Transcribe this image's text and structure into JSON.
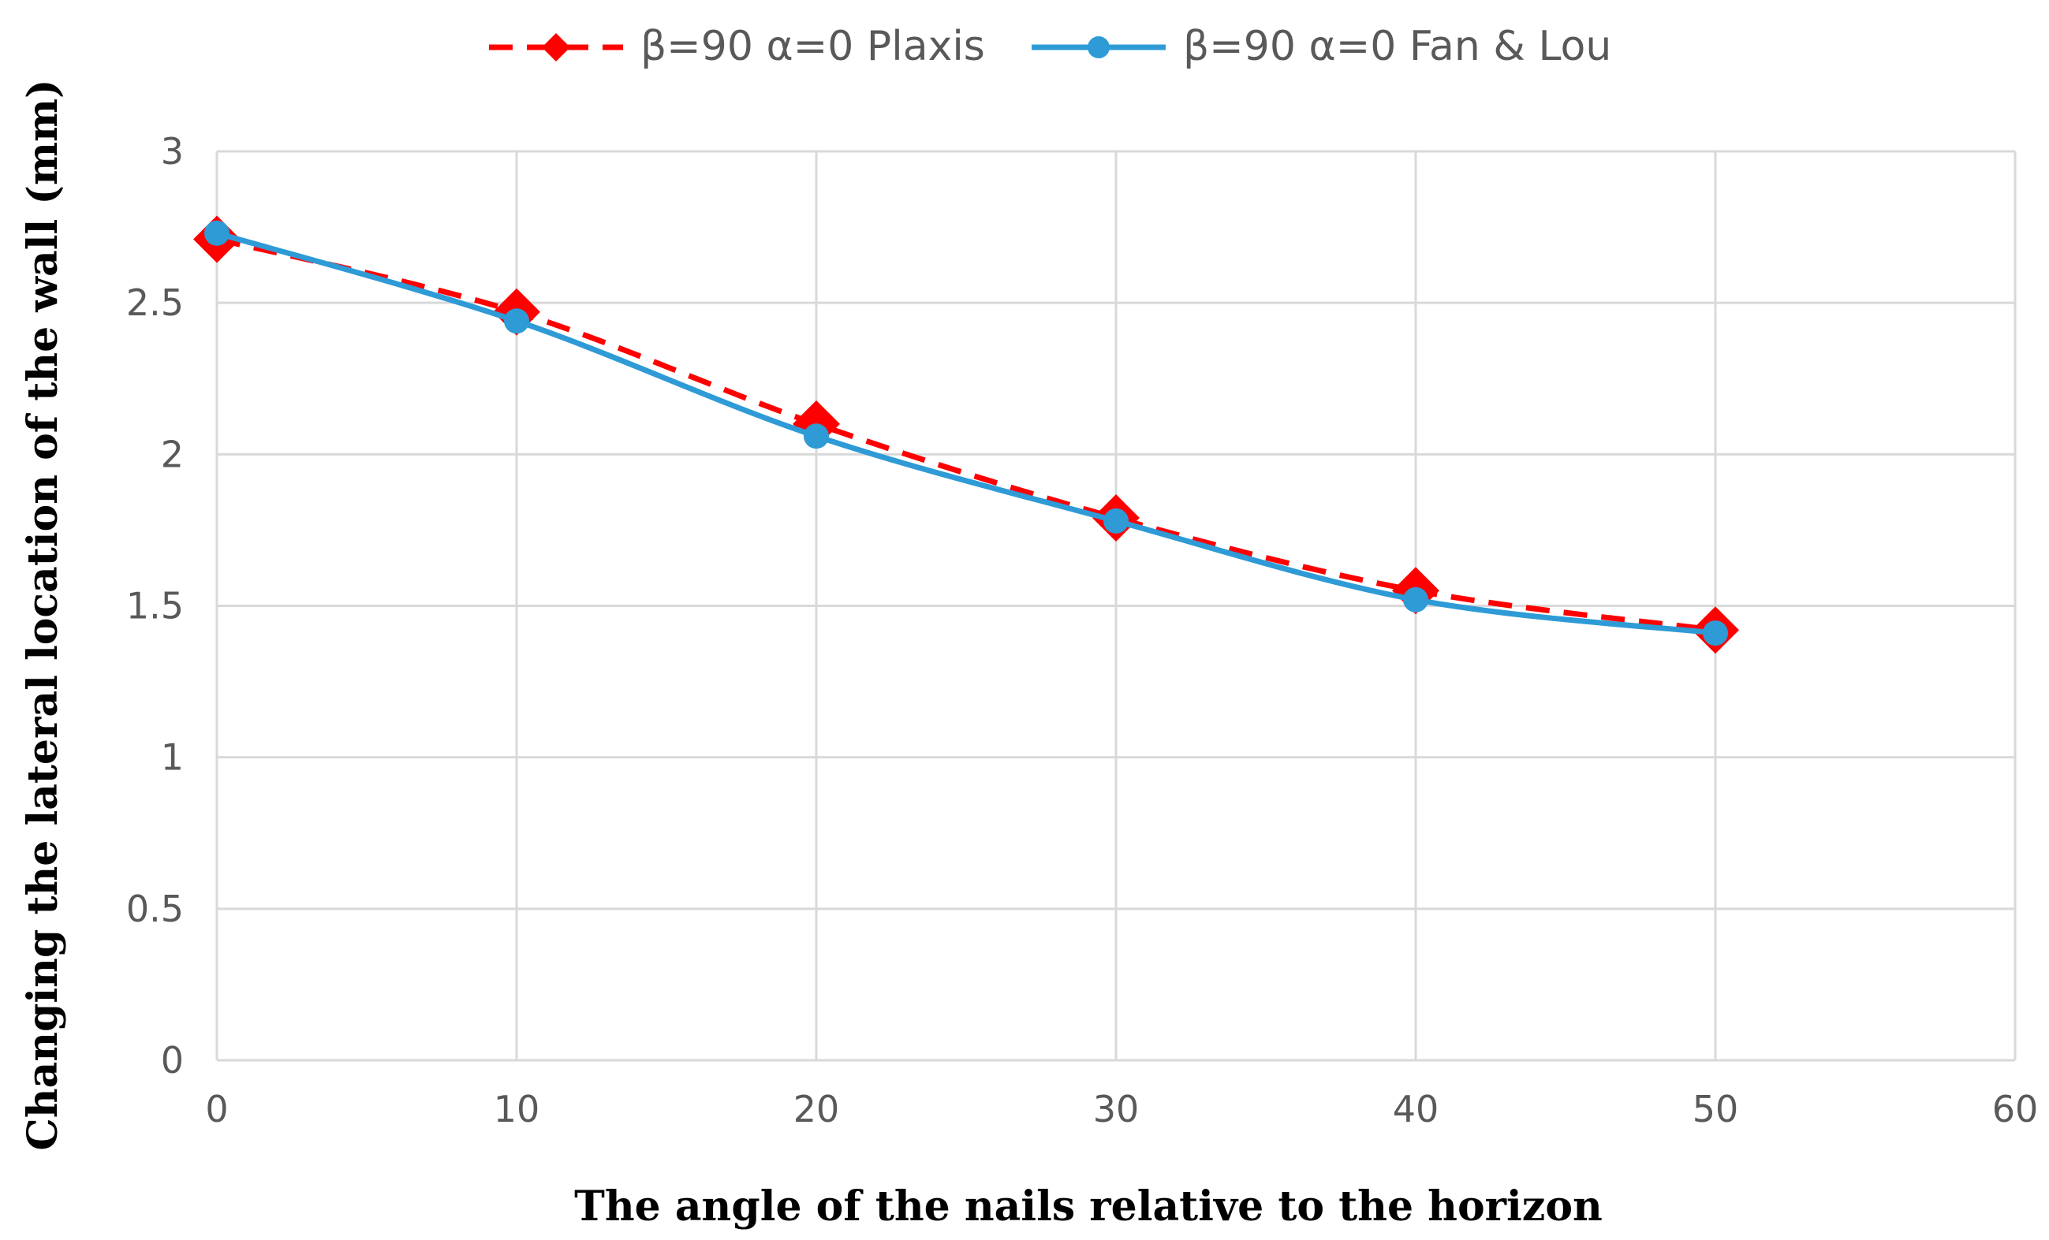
{
  "chart_data": {
    "type": "line",
    "title": "",
    "xlabel": "The angle of the nails relative to the horizon",
    "ylabel": "Changing the lateral location of the wall (mm)",
    "xlim": [
      0,
      60
    ],
    "ylim": [
      0,
      3
    ],
    "x_ticks": [
      "0",
      "10",
      "20",
      "30",
      "40",
      "50",
      "60"
    ],
    "y_ticks": [
      "0",
      "0.5",
      "1",
      "1.5",
      "2",
      "2.5",
      "3"
    ],
    "grid": true,
    "legend_position": "top-center",
    "x": [
      0,
      10,
      20,
      30,
      40,
      50
    ],
    "series": [
      {
        "name": "β=90 α=0 Plaxis",
        "values": [
          2.71,
          2.47,
          2.1,
          1.79,
          1.55,
          1.42
        ],
        "color": "#ff0000",
        "line_style": "dashed",
        "marker": "diamond"
      },
      {
        "name": "β=90 α=0 Fan & Lou",
        "values": [
          2.73,
          2.44,
          2.06,
          1.78,
          1.52,
          1.41
        ],
        "color": "#2e9bd6",
        "line_style": "solid",
        "marker": "circle"
      }
    ]
  }
}
